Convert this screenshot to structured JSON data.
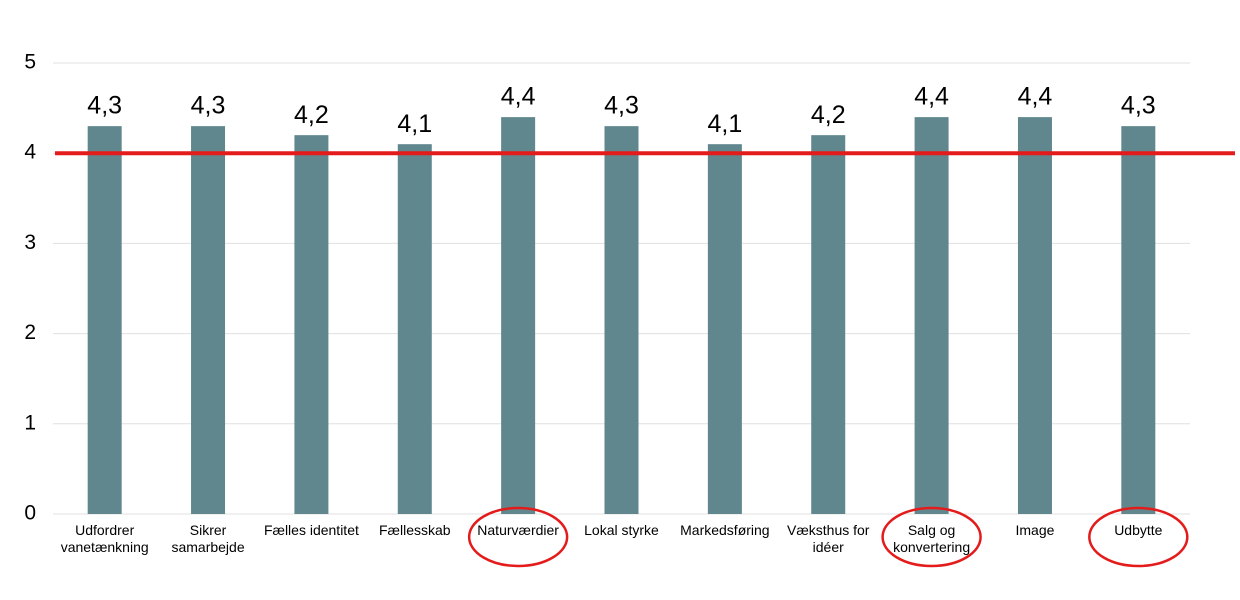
{
  "chart_data": {
    "type": "bar",
    "categories": [
      "Udfordrer\nvanetænkning",
      "Sikrer\nsamarbejde",
      "Fælles identitet",
      "Fællesskab",
      "Naturværdier",
      "Lokal styrke",
      "Markedsføring",
      "Væksthus for\nidéer",
      "Salg og\nkonvertering",
      "Image",
      "Udbytte"
    ],
    "values": [
      4.3,
      4.3,
      4.2,
      4.1,
      4.4,
      4.3,
      4.1,
      4.2,
      4.4,
      4.4,
      4.3
    ],
    "value_labels": [
      "4,3",
      "4,3",
      "4,2",
      "4,1",
      "4,4",
      "4,3",
      "4,1",
      "4,2",
      "4,4",
      "4,4",
      "4,3"
    ],
    "color": "#5f878d",
    "ylim": [
      0,
      5
    ],
    "yticks": [
      0,
      1,
      2,
      3,
      4,
      5
    ],
    "grid": true,
    "reference_line": {
      "value": 4,
      "color": "#e41b1b"
    },
    "highlighted_categories": [
      4,
      8,
      10
    ],
    "highlight_color": "#e41b1b"
  }
}
